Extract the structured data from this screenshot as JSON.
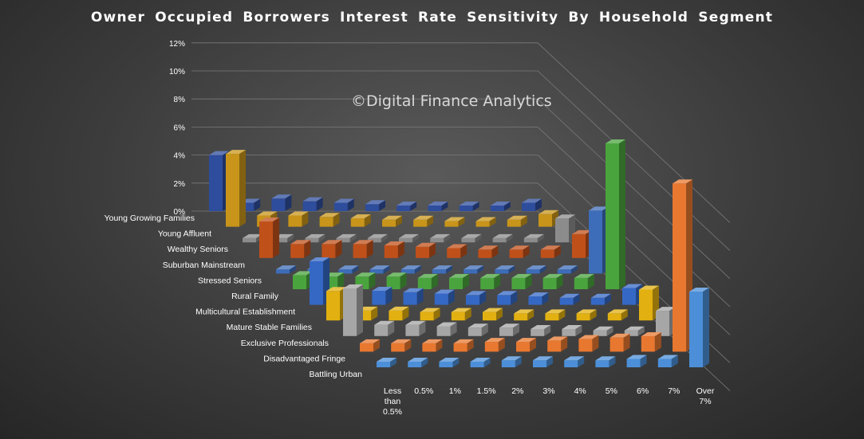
{
  "chart_data": {
    "type": "bar",
    "chart_style": "3d-column",
    "title": "Owner Occupied Borrowers  Interest Rate Sensitivity  By Household  Segment",
    "watermark": "©Digital Finance Analytics",
    "xlabel": "",
    "ylabel": "",
    "y_unit": "%",
    "ylim": [
      0,
      12
    ],
    "yticks": [
      "0%",
      "2%",
      "4%",
      "6%",
      "8%",
      "10%",
      "12%"
    ],
    "grid": true,
    "legend": "none",
    "categories": [
      "Less than 0.5%",
      "0.5%",
      "1%",
      "1.5%",
      "2%",
      "3%",
      "4%",
      "5%",
      "6%",
      "7%",
      "Over 7%"
    ],
    "series": [
      {
        "name": "Young Growing Families",
        "color": "#2e4d9c",
        "values": [
          4.0,
          0.6,
          0.9,
          0.7,
          0.6,
          0.5,
          0.4,
          0.4,
          0.4,
          0.4,
          0.6
        ]
      },
      {
        "name": "Young Affluent",
        "color": "#c8951a",
        "values": [
          5.2,
          0.8,
          0.8,
          0.7,
          0.6,
          0.5,
          0.5,
          0.4,
          0.4,
          0.5,
          0.9
        ]
      },
      {
        "name": "Wealthy Seniors",
        "color": "#8c8c8c",
        "values": [
          0.3,
          0.3,
          0.3,
          0.3,
          0.3,
          0.3,
          0.3,
          0.3,
          0.3,
          0.3,
          1.7
        ]
      },
      {
        "name": "Suburban Mainstream",
        "color": "#c0501a",
        "values": [
          2.6,
          1.0,
          1.0,
          1.0,
          0.9,
          0.8,
          0.7,
          0.6,
          0.6,
          0.6,
          1.7
        ]
      },
      {
        "name": "Stressed Seniors",
        "color": "#3d6cb8",
        "values": [
          0.3,
          0.3,
          0.3,
          0.3,
          0.3,
          0.3,
          0.3,
          0.3,
          0.3,
          0.3,
          4.5
        ]
      },
      {
        "name": "Rural Family",
        "color": "#4aa43d",
        "values": [
          1.0,
          0.9,
          0.9,
          0.9,
          0.8,
          0.8,
          0.8,
          0.8,
          0.8,
          0.8,
          10.4
        ]
      },
      {
        "name": "Multicultural Establishment",
        "color": "#3568c5",
        "values": [
          3.1,
          1.0,
          1.0,
          0.9,
          0.8,
          0.7,
          0.7,
          0.6,
          0.5,
          0.5,
          1.2
        ]
      },
      {
        "name": "Mature Stable Families",
        "color": "#e2b010",
        "values": [
          2.1,
          0.7,
          0.7,
          0.6,
          0.6,
          0.6,
          0.5,
          0.5,
          0.5,
          0.5,
          2.2
        ]
      },
      {
        "name": "Exclusive Professionals",
        "color": "#a6a6a6",
        "values": [
          3.4,
          0.8,
          0.8,
          0.7,
          0.6,
          0.6,
          0.5,
          0.5,
          0.4,
          0.4,
          1.8
        ]
      },
      {
        "name": "Disadvantaged Fringe",
        "color": "#e87830",
        "values": [
          0.6,
          0.6,
          0.6,
          0.6,
          0.7,
          0.7,
          0.8,
          0.9,
          1.0,
          1.1,
          12.0
        ]
      },
      {
        "name": "Battling Urban",
        "color": "#4c8fd8",
        "values": [
          0.4,
          0.4,
          0.4,
          0.4,
          0.5,
          0.5,
          0.5,
          0.5,
          0.6,
          0.6,
          5.4
        ]
      }
    ]
  }
}
